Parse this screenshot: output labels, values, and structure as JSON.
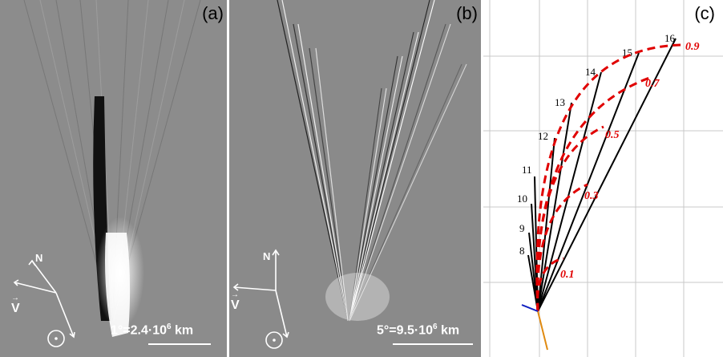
{
  "panels": {
    "a": {
      "label": "(a)",
      "scale_text_base": "1°=2.4·10",
      "scale_text_exp": "6",
      "scale_text_unit": " km",
      "north": "N",
      "velocity": "V"
    },
    "b": {
      "label": "(b)",
      "scale_text_base": "5°=9.5·10",
      "scale_text_exp": "6",
      "scale_text_unit": " km",
      "north": "N",
      "velocity": "V"
    },
    "c": {
      "label": "(c)",
      "date_labels": [
        "8",
        "9",
        "10",
        "11",
        "12",
        "13",
        "14",
        "15",
        "16"
      ],
      "age_labels": [
        "0.1",
        "0.3",
        "0.5",
        "0.7",
        "0.9"
      ],
      "colors": {
        "synchrone": "#000000",
        "syndyne": "#e00000",
        "grid": "#c8c8c8",
        "sun_line": "#e08a10",
        "velocity_line": "#1020c0"
      }
    }
  }
}
